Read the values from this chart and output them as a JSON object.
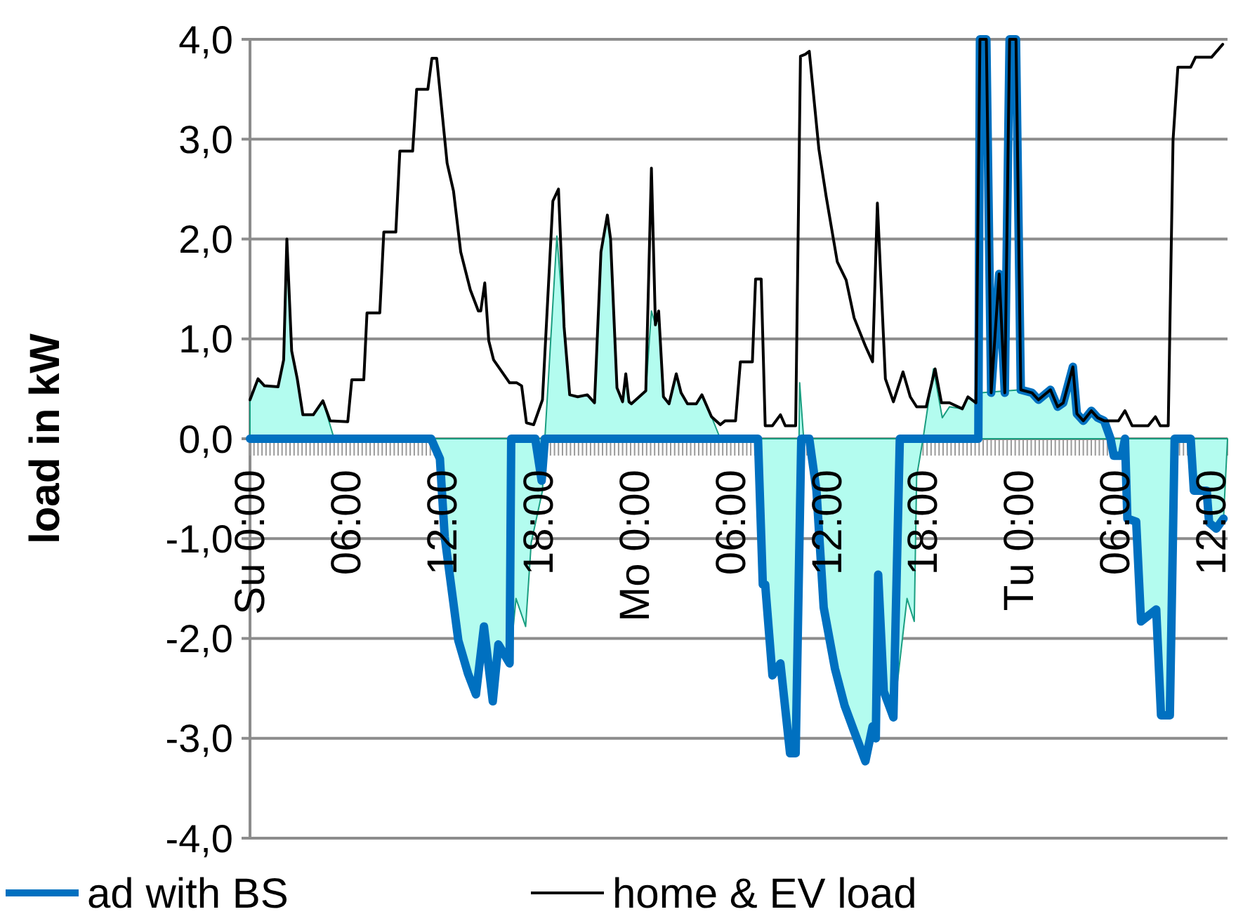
{
  "chart_data": {
    "type": "line",
    "ylabel": "load in kW",
    "xlim": [
      "2000-01-02T00:00",
      "2000-01-04T13:00"
    ],
    "xticks": [
      {
        "value": "2000-01-02T00:00",
        "label": "Su 0:00"
      },
      {
        "value": "2000-01-02T06:00",
        "label": "06:00"
      },
      {
        "value": "2000-01-02T12:00",
        "label": "12:00"
      },
      {
        "value": "2000-01-02T18:00",
        "label": "18:00"
      },
      {
        "value": "2000-01-03T00:00",
        "label": "Mo 0:00"
      },
      {
        "value": "2000-01-03T06:00",
        "label": "06:00"
      },
      {
        "value": "2000-01-03T12:00",
        "label": "12:00"
      },
      {
        "value": "2000-01-03T18:00",
        "label": "18:00"
      },
      {
        "value": "2000-01-04T00:00",
        "label": "Tu 0:00"
      },
      {
        "value": "2000-01-04T06:00",
        "label": "06:00"
      },
      {
        "value": "2000-01-04T12:00",
        "label": "12:00"
      }
    ],
    "ylim": [
      -4,
      4
    ],
    "yticks": [
      {
        "value": -4,
        "label": "-4,0"
      },
      {
        "value": -3,
        "label": "-3,0"
      },
      {
        "value": -2,
        "label": "-2,0"
      },
      {
        "value": -1,
        "label": "-1,0"
      },
      {
        "value": 0,
        "label": "0,0"
      },
      {
        "value": 1,
        "label": "1,0"
      },
      {
        "value": 2,
        "label": "2,0"
      },
      {
        "value": 3,
        "label": "3,0"
      },
      {
        "value": 4,
        "label": "4,0"
      }
    ],
    "grid": "y",
    "legend": "bottom",
    "marker": "none",
    "series": [
      {
        "type": "area",
        "color": "#b3fcef",
        "x": [
          "2000-01-02T00:00",
          "2000-01-02T00:30",
          "2000-01-02T00:54",
          "2000-01-02T01:45",
          "2000-01-02T02:06",
          "2000-01-02T02:18",
          "2000-01-02T02:36",
          "2000-01-02T02:57",
          "2000-01-02T03:18",
          "2000-01-02T03:57",
          "2000-01-02T04:33",
          "2000-01-02T05:15",
          "2000-01-02T11:18",
          "2000-01-02T11:51",
          "2000-01-02T12:09",
          "2000-01-02T13:00",
          "2000-01-02T13:36",
          "2000-01-02T14:06",
          "2000-01-02T14:36",
          "2000-01-02T15:09",
          "2000-01-02T15:30",
          "2000-01-02T16:12",
          "2000-01-02T16:36",
          "2000-01-02T17:12",
          "2000-01-02T17:33",
          "2000-01-02T18:15",
          "2000-01-02T18:24",
          "2000-01-02T19:09",
          "2000-01-02T19:36",
          "2000-01-02T19:57",
          "2000-01-02T20:27",
          "2000-01-02T21:03",
          "2000-01-02T21:30",
          "2000-01-02T21:54",
          "2000-01-02T22:18",
          "2000-01-02T22:30",
          "2000-01-02T22:54",
          "2000-01-02T23:15",
          "2000-01-02T23:27",
          "2000-01-02T23:39",
          "2000-01-02T23:48",
          "2000-01-03T00:42",
          "2000-01-03T01:03",
          "2000-01-03T01:18",
          "2000-01-03T01:30",
          "2000-01-03T01:48",
          "2000-01-03T02:09",
          "2000-01-03T02:36",
          "2000-01-03T02:54",
          "2000-01-03T03:18",
          "2000-01-03T03:51",
          "2000-01-03T04:12",
          "2000-01-03T04:48",
          "2000-01-03T05:21",
          "2000-01-03T07:42",
          "2000-01-03T08:00",
          "2000-01-03T08:09",
          "2000-01-03T08:36",
          "2000-01-03T09:06",
          "2000-01-03T09:42",
          "2000-01-03T10:03",
          "2000-01-03T10:18",
          "2000-01-03T10:33",
          "2000-01-03T10:54",
          "2000-01-03T11:21",
          "2000-01-03T11:48",
          "2000-01-03T12:30",
          "2000-01-03T13:06",
          "2000-01-03T13:42",
          "2000-01-03T14:24",
          "2000-01-03T14:51",
          "2000-01-03T15:03",
          "2000-01-03T15:12",
          "2000-01-03T15:33",
          "2000-01-03T16:09",
          "2000-01-03T17:00",
          "2000-01-03T17:27",
          "2000-01-03T17:36",
          "2000-01-03T18:00",
          "2000-01-03T18:39",
          "2000-01-03T19:12",
          "2000-01-03T19:39",
          "2000-01-03T20:27",
          "2000-01-03T20:48",
          "2000-01-03T21:18",
          "2000-01-03T21:36",
          "2000-01-04T00:06",
          "2000-01-04T00:48",
          "2000-01-04T01:12",
          "2000-01-04T01:57",
          "2000-01-04T02:24",
          "2000-01-04T02:45",
          "2000-01-04T03:21",
          "2000-01-04T03:36",
          "2000-01-04T04:00",
          "2000-01-04T04:30",
          "2000-01-04T04:54",
          "2000-01-04T05:18",
          "2000-01-04T05:42",
          "2000-01-04T05:54",
          "2000-01-04T06:24",
          "2000-01-04T06:36",
          "2000-01-04T06:45",
          "2000-01-04T07:18",
          "2000-01-04T07:36",
          "2000-01-04T08:33",
          "2000-01-04T08:51",
          "2000-01-04T09:24",
          "2000-01-04T09:42",
          "2000-01-04T10:42",
          "2000-01-04T10:54",
          "2000-01-04T11:42",
          "2000-01-04T11:51",
          "2000-01-04T12:18",
          "2000-01-04T12:45",
          "2000-01-04T13:00"
        ],
        "values": [
          0.39,
          0.6,
          0.53,
          0.52,
          0.79,
          2.0,
          0.88,
          0.6,
          0.24,
          0.24,
          0.38,
          0,
          0,
          -0.2,
          -0.98,
          -2.02,
          -2.35,
          -2.56,
          -1.88,
          -2.63,
          -2.06,
          -2.25,
          -1.6,
          -1.88,
          -1.04,
          -0.52,
          0,
          2.03,
          1.12,
          0.44,
          0.42,
          0.44,
          0.36,
          1.87,
          2.24,
          2.0,
          0.51,
          0.37,
          0.65,
          0.37,
          0.35,
          0.48,
          1.28,
          1.14,
          1.28,
          0.42,
          0.35,
          0.65,
          0.46,
          0.35,
          0.35,
          0.44,
          0.22,
          0,
          0,
          -1.46,
          -1.46,
          -2.37,
          -2.25,
          -3.15,
          -3.15,
          0.56,
          0,
          0,
          -0.52,
          -1.69,
          -2.3,
          -2.67,
          -2.93,
          -3.23,
          -2.88,
          -3.0,
          -1.36,
          -2.53,
          -2.79,
          -1.6,
          -1.83,
          -0.38,
          0,
          0.7,
          0.21,
          0.32,
          0.3,
          0.42,
          0.36,
          0.46,
          0.49,
          0.46,
          0.39,
          0.49,
          0.32,
          0.36,
          0.72,
          0.25,
          0.18,
          0.28,
          0.21,
          0.18,
          0,
          -0.17,
          -0.17,
          0,
          -0.8,
          -0.83,
          -1.83,
          -1.71,
          -2.77,
          -2.77,
          0,
          0,
          -0.52,
          -0.52,
          -0.84,
          -0.9,
          -0.8,
          0
        ]
      },
      {
        "name": "ad with BS",
        "color": "#0070c0",
        "x": [
          "2000-01-02T00:00",
          "2000-01-02T11:18",
          "2000-01-02T11:51",
          "2000-01-02T12:09",
          "2000-01-02T13:00",
          "2000-01-02T13:36",
          "2000-01-02T14:06",
          "2000-01-02T14:36",
          "2000-01-02T15:09",
          "2000-01-02T15:30",
          "2000-01-02T16:12",
          "2000-01-02T16:18",
          "2000-01-02T17:48",
          "2000-01-02T18:12",
          "2000-01-02T18:24",
          "2000-01-03T07:42",
          "2000-01-03T08:00",
          "2000-01-03T08:09",
          "2000-01-03T08:36",
          "2000-01-03T09:06",
          "2000-01-03T09:42",
          "2000-01-03T10:03",
          "2000-01-03T10:24",
          "2000-01-03T10:54",
          "2000-01-03T11:21",
          "2000-01-03T11:48",
          "2000-01-03T12:30",
          "2000-01-03T13:06",
          "2000-01-03T13:42",
          "2000-01-03T14:24",
          "2000-01-03T14:51",
          "2000-01-03T15:03",
          "2000-01-03T15:12",
          "2000-01-03T15:33",
          "2000-01-03T16:09",
          "2000-01-03T16:33",
          "2000-01-03T21:27",
          "2000-01-03T21:33",
          "2000-01-03T21:57",
          "2000-01-03T22:15",
          "2000-01-03T22:45",
          "2000-01-03T23:06",
          "2000-01-03T23:24",
          "2000-01-03T23:48",
          "2000-01-04T00:06",
          "2000-01-04T00:48",
          "2000-01-04T01:12",
          "2000-01-04T01:57",
          "2000-01-04T02:24",
          "2000-01-04T02:45",
          "2000-01-04T03:21",
          "2000-01-04T03:36",
          "2000-01-04T04:00",
          "2000-01-04T04:30",
          "2000-01-04T04:54",
          "2000-01-04T05:18",
          "2000-01-04T05:42",
          "2000-01-04T05:54",
          "2000-01-04T06:24",
          "2000-01-04T06:36",
          "2000-01-04T06:45",
          "2000-01-04T07:18",
          "2000-01-04T07:36",
          "2000-01-04T08:33",
          "2000-01-04T08:51",
          "2000-01-04T09:24",
          "2000-01-04T09:42",
          "2000-01-04T10:42",
          "2000-01-04T10:54",
          "2000-01-04T11:42",
          "2000-01-04T11:51",
          "2000-01-04T12:18",
          "2000-01-04T12:45"
        ],
        "values": [
          0,
          0,
          -0.2,
          -0.98,
          -2.02,
          -2.35,
          -2.56,
          -1.88,
          -2.63,
          -2.06,
          -2.25,
          0,
          0,
          -0.42,
          0,
          0,
          -1.46,
          -1.46,
          -2.37,
          -2.25,
          -3.15,
          -3.15,
          0,
          0,
          -0.52,
          -1.69,
          -2.3,
          -2.67,
          -2.93,
          -3.23,
          -2.88,
          -3.0,
          -1.36,
          -2.53,
          -2.79,
          0,
          0,
          4.0,
          4.0,
          0.46,
          1.65,
          0.46,
          4.0,
          4.0,
          0.49,
          0.46,
          0.39,
          0.49,
          0.32,
          0.36,
          0.72,
          0.25,
          0.18,
          0.28,
          0.21,
          0.18,
          0,
          -0.17,
          -0.17,
          0,
          -0.8,
          -0.83,
          -1.83,
          -1.71,
          -2.77,
          -2.77,
          0,
          0,
          -0.52,
          -0.52,
          -0.84,
          -0.9,
          -0.8
        ]
      },
      {
        "name": "home & EV load",
        "color": "#000000",
        "x": [
          "2000-01-02T00:00",
          "2000-01-02T00:30",
          "2000-01-02T00:54",
          "2000-01-02T01:45",
          "2000-01-02T02:06",
          "2000-01-02T02:18",
          "2000-01-02T02:36",
          "2000-01-02T02:57",
          "2000-01-02T03:18",
          "2000-01-02T03:57",
          "2000-01-02T04:33",
          "2000-01-02T05:00",
          "2000-01-02T06:06",
          "2000-01-02T06:21",
          "2000-01-02T07:06",
          "2000-01-02T07:18",
          "2000-01-02T08:06",
          "2000-01-02T08:21",
          "2000-01-02T09:06",
          "2000-01-02T09:21",
          "2000-01-02T10:09",
          "2000-01-02T10:24",
          "2000-01-02T11:06",
          "2000-01-02T11:21",
          "2000-01-02T11:39",
          "2000-01-02T12:18",
          "2000-01-02T12:42",
          "2000-01-02T13:09",
          "2000-01-02T13:45",
          "2000-01-02T14:15",
          "2000-01-02T14:24",
          "2000-01-02T14:39",
          "2000-01-02T14:54",
          "2000-01-02T15:12",
          "2000-01-02T16:12",
          "2000-01-02T16:39",
          "2000-01-02T16:57",
          "2000-01-02T17:15",
          "2000-01-02T17:42",
          "2000-01-02T18:15",
          "2000-01-02T18:54",
          "2000-01-02T19:15",
          "2000-01-02T19:36",
          "2000-01-02T19:57",
          "2000-01-02T20:27",
          "2000-01-02T21:03",
          "2000-01-02T21:30",
          "2000-01-02T21:54",
          "2000-01-02T22:18",
          "2000-01-02T22:30",
          "2000-01-02T22:54",
          "2000-01-02T23:15",
          "2000-01-02T23:27",
          "2000-01-02T23:39",
          "2000-01-02T23:48",
          "2000-01-03T00:42",
          "2000-01-03T01:03",
          "2000-01-03T01:18",
          "2000-01-03T01:30",
          "2000-01-03T01:48",
          "2000-01-03T02:09",
          "2000-01-03T02:36",
          "2000-01-03T02:54",
          "2000-01-03T03:18",
          "2000-01-03T03:51",
          "2000-01-03T04:12",
          "2000-01-03T04:48",
          "2000-01-03T05:21",
          "2000-01-03T05:39",
          "2000-01-03T06:18",
          "2000-01-03T06:36",
          "2000-01-03T07:21",
          "2000-01-03T07:33",
          "2000-01-03T07:54",
          "2000-01-03T08:09",
          "2000-01-03T08:36",
          "2000-01-03T09:06",
          "2000-01-03T09:24",
          "2000-01-03T10:03",
          "2000-01-03T10:21",
          "2000-01-03T10:39",
          "2000-01-03T10:54",
          "2000-01-03T11:30",
          "2000-01-03T11:57",
          "2000-01-03T12:39",
          "2000-01-03T13:12",
          "2000-01-03T13:42",
          "2000-01-03T14:24",
          "2000-01-03T14:51",
          "2000-01-03T15:09",
          "2000-01-03T15:39",
          "2000-01-03T16:09",
          "2000-01-03T16:45",
          "2000-01-03T17:12",
          "2000-01-03T17:36",
          "2000-01-03T18:12",
          "2000-01-03T18:45",
          "2000-01-03T19:09",
          "2000-01-03T19:39",
          "2000-01-03T20:27",
          "2000-01-03T20:48",
          "2000-01-03T21:18",
          "2000-01-03T21:33",
          "2000-01-03T21:57",
          "2000-01-03T22:15",
          "2000-01-03T22:45",
          "2000-01-03T23:06",
          "2000-01-03T23:24",
          "2000-01-03T23:48",
          "2000-01-04T00:06",
          "2000-01-04T00:48",
          "2000-01-04T01:12",
          "2000-01-04T01:57",
          "2000-01-04T02:24",
          "2000-01-04T02:45",
          "2000-01-04T03:21",
          "2000-01-04T03:36",
          "2000-01-04T04:00",
          "2000-01-04T04:30",
          "2000-01-04T04:54",
          "2000-01-04T05:18",
          "2000-01-04T06:12",
          "2000-01-04T06:36",
          "2000-01-04T07:03",
          "2000-01-04T08:03",
          "2000-01-04T08:30",
          "2000-01-04T08:48",
          "2000-01-04T09:18",
          "2000-01-04T09:36",
          "2000-01-04T09:54",
          "2000-01-04T10:42",
          "2000-01-04T11:00",
          "2000-01-04T12:00",
          "2000-01-04T12:42"
        ],
        "values": [
          0.39,
          0.6,
          0.53,
          0.52,
          0.79,
          2.0,
          0.88,
          0.6,
          0.24,
          0.24,
          0.38,
          0.18,
          0.17,
          0.59,
          0.59,
          1.26,
          1.26,
          2.07,
          2.07,
          2.88,
          2.88,
          3.5,
          3.5,
          3.81,
          3.81,
          2.76,
          2.48,
          1.87,
          1.49,
          1.28,
          1.28,
          1.56,
          0.98,
          0.79,
          0.56,
          0.56,
          0.53,
          0.16,
          0.14,
          0.39,
          2.38,
          2.5,
          1.12,
          0.44,
          0.42,
          0.44,
          0.36,
          1.87,
          2.24,
          2.0,
          0.51,
          0.37,
          0.65,
          0.37,
          0.35,
          0.48,
          2.71,
          1.14,
          1.28,
          0.42,
          0.35,
          0.65,
          0.46,
          0.35,
          0.35,
          0.44,
          0.22,
          0.14,
          0.18,
          0.18,
          0.77,
          0.77,
          1.6,
          1.6,
          0.13,
          0.13,
          0.24,
          0.13,
          0.13,
          3.83,
          3.85,
          3.88,
          2.9,
          2.43,
          1.77,
          1.59,
          1.21,
          0.93,
          0.77,
          2.36,
          0.6,
          0.37,
          0.67,
          0.42,
          0.32,
          0.32,
          0.7,
          0.36,
          0.36,
          0.3,
          0.42,
          0.36,
          4.0,
          4.0,
          0.46,
          1.65,
          0.46,
          4.0,
          4.0,
          0.49,
          0.46,
          0.39,
          0.49,
          0.32,
          0.36,
          0.72,
          0.25,
          0.18,
          0.28,
          0.21,
          0.18,
          0.18,
          0.28,
          0.13,
          0.13,
          0.22,
          0.13,
          0.13,
          2.99,
          3.72,
          3.72,
          3.82,
          3.82,
          3.95
        ]
      }
    ]
  }
}
